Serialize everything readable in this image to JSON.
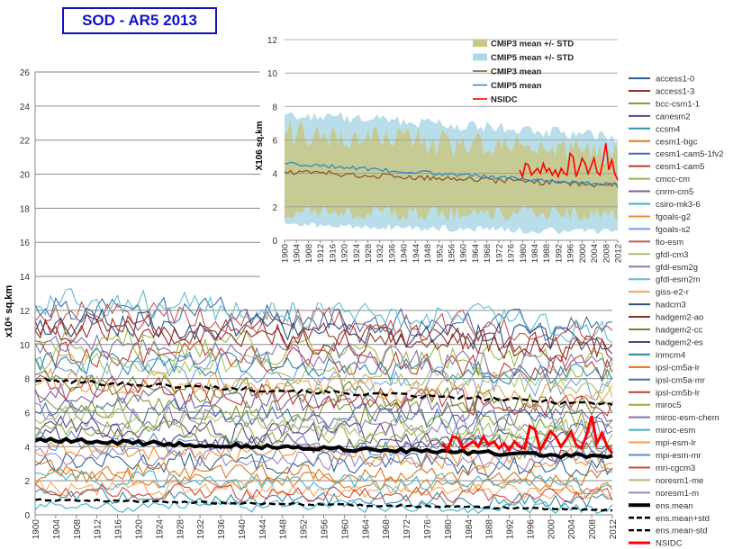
{
  "title_box": "SOD - AR5 2013",
  "chart_data": [
    {
      "type": "line",
      "ylabel": "x10⁶ sq.km",
      "ylim": [
        0,
        26
      ],
      "yticks": [
        0,
        2,
        4,
        6,
        8,
        10,
        12,
        14,
        16,
        18,
        20,
        22,
        24,
        26
      ],
      "xlim": [
        1900,
        2012
      ],
      "xticks": [
        1900,
        1904,
        1908,
        1912,
        1916,
        1920,
        1924,
        1928,
        1932,
        1936,
        1940,
        1944,
        1948,
        1952,
        1956,
        1960,
        1964,
        1968,
        1972,
        1976,
        1980,
        1984,
        1988,
        1992,
        1996,
        2000,
        2004,
        2008,
        2012
      ],
      "models": [
        {
          "name": "access1-0",
          "color": "#2e5f8a",
          "level": 3.2,
          "amp": 0.7,
          "trend": -0.4
        },
        {
          "name": "access1-3",
          "color": "#a0302a",
          "level": 11.2,
          "amp": 0.9,
          "trend": -1.4
        },
        {
          "name": "bcc-csm1-1",
          "color": "#7a9a2e",
          "level": 6.5,
          "amp": 0.8,
          "trend": -1.0
        },
        {
          "name": "canesm2",
          "color": "#5c3f86",
          "level": 5.3,
          "amp": 0.8,
          "trend": -0.9
        },
        {
          "name": "ccsm4",
          "color": "#2b8fab",
          "level": 1.1,
          "amp": 0.5,
          "trend": -0.3
        },
        {
          "name": "cesm1-bgc",
          "color": "#e07b1a",
          "level": 2.2,
          "amp": 0.6,
          "trend": -0.5
        },
        {
          "name": "cesm1-cam5-1fv2",
          "color": "#3f6fae",
          "level": 12.3,
          "amp": 1.0,
          "trend": -1.5
        },
        {
          "name": "cesm1-cam5",
          "color": "#c0392b",
          "level": 9.6,
          "amp": 0.9,
          "trend": -1.0
        },
        {
          "name": "cmcc-cm",
          "color": "#98b94a",
          "level": 10.4,
          "amp": 1.0,
          "trend": -1.8
        },
        {
          "name": "cnrm-cm5",
          "color": "#7b5ca6",
          "level": 7.2,
          "amp": 0.8,
          "trend": -1.3
        },
        {
          "name": "csiro-mk3-6",
          "color": "#3caec8",
          "level": 0.6,
          "amp": 0.4,
          "trend": -0.2
        },
        {
          "name": "fgoals-g2",
          "color": "#f0902a",
          "level": 3.8,
          "amp": 0.7,
          "trend": -0.6
        },
        {
          "name": "fgoals-s2",
          "color": "#6fa0d8",
          "level": 8.6,
          "amp": 0.9,
          "trend": -1.2
        },
        {
          "name": "fio-esm",
          "color": "#c45850",
          "level": 11.9,
          "amp": 0.9,
          "trend": -1.1
        },
        {
          "name": "gfdl-cm3",
          "color": "#a6c26a",
          "level": 9.2,
          "amp": 0.8,
          "trend": -1.7
        },
        {
          "name": "gfdl-esm2g",
          "color": "#8e7cb8",
          "level": 6.0,
          "amp": 0.8,
          "trend": -1.1
        },
        {
          "name": "gfdl-esm2m",
          "color": "#5fbcd3",
          "level": 12.6,
          "amp": 1.0,
          "trend": -1.6
        },
        {
          "name": "giss-e2-r",
          "color": "#f5a55a",
          "level": 1.6,
          "amp": 0.5,
          "trend": -0.3
        },
        {
          "name": "hadcm3",
          "color": "#2c4f7c",
          "level": 11.5,
          "amp": 1.0,
          "trend": -1.3
        },
        {
          "name": "hadgem2-ao",
          "color": "#8e2e28",
          "level": 10.9,
          "amp": 0.9,
          "trend": -1.2
        },
        {
          "name": "hadgem2-cc",
          "color": "#6b8a28",
          "level": 7.8,
          "amp": 0.8,
          "trend": -1.4
        },
        {
          "name": "hadgem2-es",
          "color": "#5a3e80",
          "level": 4.6,
          "amp": 0.7,
          "trend": -0.8
        },
        {
          "name": "inmcm4",
          "color": "#2a8aa6",
          "level": 9.1,
          "amp": 0.8,
          "trend": -0.9
        },
        {
          "name": "ipsl-cm5a-lr",
          "color": "#d8751c",
          "level": 2.7,
          "amp": 0.6,
          "trend": -0.5
        },
        {
          "name": "ipsl-cm5a-mr",
          "color": "#4670b0",
          "level": 6.3,
          "amp": 0.8,
          "trend": -1.0
        },
        {
          "name": "ipsl-cm5b-lr",
          "color": "#bb3a32",
          "level": 7.6,
          "amp": 0.8,
          "trend": -1.3
        },
        {
          "name": "miroc5",
          "color": "#8fb040",
          "level": 5.1,
          "amp": 0.7,
          "trend": -0.8
        },
        {
          "name": "miroc-esm-chem",
          "color": "#8370b0",
          "level": 10.1,
          "amp": 0.9,
          "trend": -1.5
        },
        {
          "name": "miroc-esm",
          "color": "#43b4cc",
          "level": 2.1,
          "amp": 0.6,
          "trend": -0.4
        },
        {
          "name": "mpi-esm-lr",
          "color": "#f2a04a",
          "level": 8.0,
          "amp": 0.8,
          "trend": -1.1
        },
        {
          "name": "mpi-esm-mr",
          "color": "#5c89c4",
          "level": 4.3,
          "amp": 0.7,
          "trend": -0.6
        },
        {
          "name": "mri-cgcm3",
          "color": "#cc4a40",
          "level": 1.4,
          "amp": 0.5,
          "trend": -0.3
        },
        {
          "name": "noresm1-me",
          "color": "#a4c060",
          "level": 5.8,
          "amp": 0.8,
          "trend": -1.0
        },
        {
          "name": "noresm1-m",
          "color": "#9886c0",
          "level": 3.5,
          "amp": 0.6,
          "trend": -0.5
        }
      ],
      "ens_mean": {
        "name": "ens.mean",
        "color": "#000000",
        "start": 4.4,
        "end": 3.4
      },
      "ens_mean_plus_std": {
        "name": "ens.mean+std",
        "color": "#000000",
        "start": 7.9,
        "end": 6.5
      },
      "ens_mean_minus_std": {
        "name": "ens.mean-std",
        "color": "#000000",
        "start": 0.9,
        "end": 0.3
      },
      "nsidc": {
        "name": "NSIDC",
        "color": "#ff0000",
        "x": [
          1979,
          1980,
          1981,
          1982,
          1983,
          1984,
          1985,
          1986,
          1987,
          1988,
          1989,
          1990,
          1991,
          1992,
          1993,
          1994,
          1995,
          1996,
          1997,
          1998,
          1999,
          2000,
          2001,
          2002,
          2003,
          2004,
          2005,
          2006,
          2007,
          2008,
          2009,
          2010,
          2011,
          2012
        ],
        "y": [
          4.2,
          3.8,
          4.6,
          4.5,
          3.9,
          4.1,
          4.3,
          4.0,
          4.6,
          4.1,
          4.3,
          3.9,
          4.2,
          3.8,
          4.3,
          4.0,
          3.9,
          5.2,
          5.0,
          3.8,
          4.3,
          4.9,
          4.6,
          4.0,
          4.4,
          4.9,
          4.1,
          3.9,
          4.7,
          5.8,
          4.2,
          4.8,
          4.0,
          3.6
        ]
      }
    },
    {
      "type": "area",
      "ylabel": "X106 sq.km",
      "ylim": [
        0,
        12
      ],
      "yticks": [
        0,
        2,
        4,
        6,
        8,
        10,
        12
      ],
      "xlim": [
        1900,
        2012
      ],
      "xticks": [
        1900,
        1904,
        1908,
        1912,
        1916,
        1920,
        1924,
        1928,
        1932,
        1936,
        1940,
        1944,
        1948,
        1952,
        1956,
        1960,
        1964,
        1968,
        1972,
        1976,
        1980,
        1984,
        1988,
        1992,
        1996,
        2000,
        2004,
        2008,
        2012
      ],
      "cmip5_band": {
        "name": "CMIP5 mean +/- STD",
        "color": "#add8e6",
        "upper_start": 7.6,
        "upper_end": 6.2,
        "lower_start": 0.9,
        "lower_end": 0.5
      },
      "cmip3_band": {
        "name": "CMIP3 mean +/- STD",
        "color": "#c8c884",
        "upper_start": 6.4,
        "upper_end": 5.2,
        "lower_start": 1.6,
        "lower_end": 1.6
      },
      "cmip3_mean": {
        "name": "CMIP3 mean",
        "color": "#8b5a2b",
        "start": 4.1,
        "end": 3.3
      },
      "cmip5_mean": {
        "name": "CMIP5 mean",
        "color": "#2f88c8",
        "start": 4.6,
        "end": 3.3
      },
      "nsidc": {
        "name": "NSIDC",
        "color": "#ff0000",
        "x": [
          1979,
          1980,
          1981,
          1982,
          1983,
          1984,
          1985,
          1986,
          1987,
          1988,
          1989,
          1990,
          1991,
          1992,
          1993,
          1994,
          1995,
          1996,
          1997,
          1998,
          1999,
          2000,
          2001,
          2002,
          2003,
          2004,
          2005,
          2006,
          2007,
          2008,
          2009,
          2010,
          2011,
          2012
        ],
        "y": [
          4.2,
          3.8,
          4.6,
          4.5,
          3.9,
          4.1,
          4.3,
          4.0,
          4.6,
          4.1,
          4.3,
          3.9,
          4.2,
          3.8,
          4.3,
          4.0,
          3.9,
          5.2,
          5.0,
          3.8,
          4.3,
          4.9,
          4.6,
          4.0,
          4.4,
          4.9,
          4.1,
          3.9,
          4.7,
          5.8,
          4.2,
          4.8,
          4.0,
          3.6
        ]
      }
    }
  ]
}
